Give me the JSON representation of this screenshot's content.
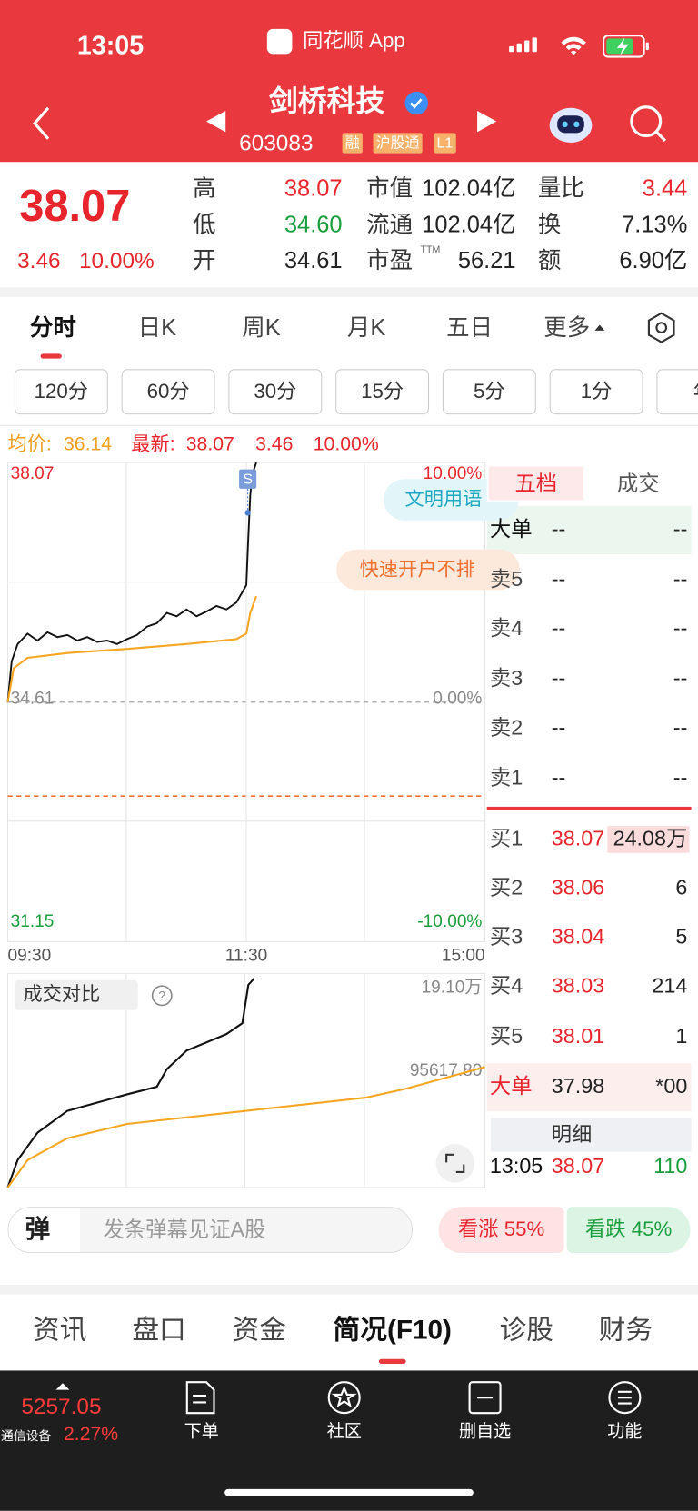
{
  "status_bar": {
    "time": "13:05",
    "app": "同花顺 App"
  },
  "header": {
    "name": "剑桥科技",
    "code": "603083",
    "tags": [
      "融",
      "沪股通",
      "L1"
    ]
  },
  "quote": {
    "price": "38.07",
    "change": "3.46",
    "change_pct": "10.00%",
    "stats": [
      {
        "label": "高",
        "value": "38.07"
      },
      {
        "label": "市值",
        "value": "102.04亿"
      },
      {
        "label": "量比",
        "value": "3.44"
      },
      {
        "label": "低",
        "value": "34.60"
      },
      {
        "label": "流通",
        "value": "102.04亿"
      },
      {
        "label": "换",
        "value": "7.13%"
      },
      {
        "label": "开",
        "value": "34.61"
      },
      {
        "label": "市盈",
        "sup": "TTM",
        "value": "56.21"
      },
      {
        "label": "额",
        "value": "6.90亿"
      }
    ]
  },
  "tabs": [
    "分时",
    "日K",
    "周K",
    "月K",
    "五日",
    "更多"
  ],
  "periods": [
    "120分",
    "60分",
    "30分",
    "15分",
    "5分",
    "1分",
    "年"
  ],
  "info": {
    "avg_label": "均价:",
    "avg": "36.14",
    "last_label": "最新:",
    "last": "38.07",
    "change": "3.46",
    "change_pct": "10.00%"
  },
  "price_chart": {
    "ylim": [
      31.15,
      38.07
    ],
    "yticks": [
      38.07,
      34.61,
      31.15
    ],
    "pct_labels": [
      "10.00%",
      "0.00%",
      "-10.00%"
    ],
    "xlim": [
      0,
      240
    ],
    "xticks": [
      {
        "value": 0,
        "label": "09:30"
      },
      {
        "value": 120,
        "label": "11:30"
      },
      {
        "value": 240,
        "label": "15:00"
      }
    ],
    "marker": "S",
    "ads": [
      "文明用语",
      "快速开户不排"
    ],
    "series": [
      {
        "color": "#111111",
        "x": [
          0,
          2,
          5,
          10,
          15,
          20,
          25,
          30,
          35,
          40,
          45,
          50,
          55,
          60,
          65,
          70,
          75,
          80,
          85,
          90,
          95,
          100,
          105,
          110,
          115,
          118,
          120,
          121,
          122,
          123,
          125
        ],
        "values": [
          34.61,
          35.2,
          35.45,
          35.6,
          35.5,
          35.62,
          35.55,
          35.58,
          35.5,
          35.55,
          35.48,
          35.5,
          35.45,
          35.52,
          35.58,
          35.7,
          35.75,
          35.9,
          35.85,
          35.95,
          35.85,
          35.92,
          36.0,
          35.95,
          36.05,
          36.2,
          36.3,
          37.0,
          37.6,
          37.9,
          38.07
        ]
      },
      {
        "color": "#f5a623",
        "x": [
          0,
          3,
          10,
          30,
          60,
          90,
          115,
          120,
          122,
          125
        ],
        "values": [
          34.61,
          35.1,
          35.25,
          35.32,
          35.38,
          35.45,
          35.52,
          35.6,
          35.9,
          36.14
        ]
      }
    ]
  },
  "order_book": {
    "tabs": [
      "五档",
      "成交"
    ],
    "rows": [
      [
        "大单",
        "--",
        "--"
      ],
      [
        "卖5",
        "--",
        "--"
      ],
      [
        "卖4",
        "--",
        "--"
      ],
      [
        "卖3",
        "--",
        "--"
      ],
      [
        "卖2",
        "--",
        "--"
      ],
      [
        "卖1",
        "--",
        "--"
      ],
      [
        "买1",
        "38.07",
        "24.08万"
      ],
      [
        "买2",
        "38.06",
        "6"
      ],
      [
        "买3",
        "38.04",
        "5"
      ],
      [
        "买4",
        "38.03",
        "214"
      ],
      [
        "买5",
        "38.01",
        "1"
      ],
      [
        "大单",
        "37.98",
        "*00"
      ]
    ],
    "detail_title": "明细",
    "trades": [
      [
        "13:05",
        "38.07",
        "110"
      ]
    ]
  },
  "volume_chart": {
    "title": "成交对比",
    "ylim": [
      0,
      191000
    ],
    "yticks": [
      {
        "value": 191000,
        "label": "19.10万"
      },
      {
        "value": 95617.8,
        "label": "95617.80"
      }
    ],
    "xlim": [
      0,
      240
    ],
    "series": [
      {
        "color": "#111111",
        "x": [
          0,
          5,
          15,
          30,
          60,
          75,
          80,
          90,
          110,
          118,
          121,
          124
        ],
        "values": [
          0,
          25000,
          50000,
          70000,
          85000,
          92000,
          108000,
          125000,
          140000,
          150000,
          185000,
          191000
        ]
      },
      {
        "color": "#f5a623",
        "x": [
          0,
          10,
          30,
          60,
          120,
          180,
          200,
          240
        ],
        "values": [
          0,
          25000,
          45000,
          58000,
          70000,
          82000,
          90000,
          110000
        ]
      }
    ]
  },
  "danmu": {
    "icon": "弹",
    "placeholder": "发条弹幕见证A股",
    "bull": "看涨 55%",
    "bear": "看跌 45%"
  },
  "nav": [
    "资讯",
    "盘口",
    "资金",
    "简况(F10)",
    "诊股",
    "财务"
  ],
  "footer": {
    "index": "5257.05",
    "sector": "通信设备",
    "sector_pct": "2.27%",
    "buttons": [
      "下单",
      "社区",
      "删自选",
      "功能"
    ]
  }
}
